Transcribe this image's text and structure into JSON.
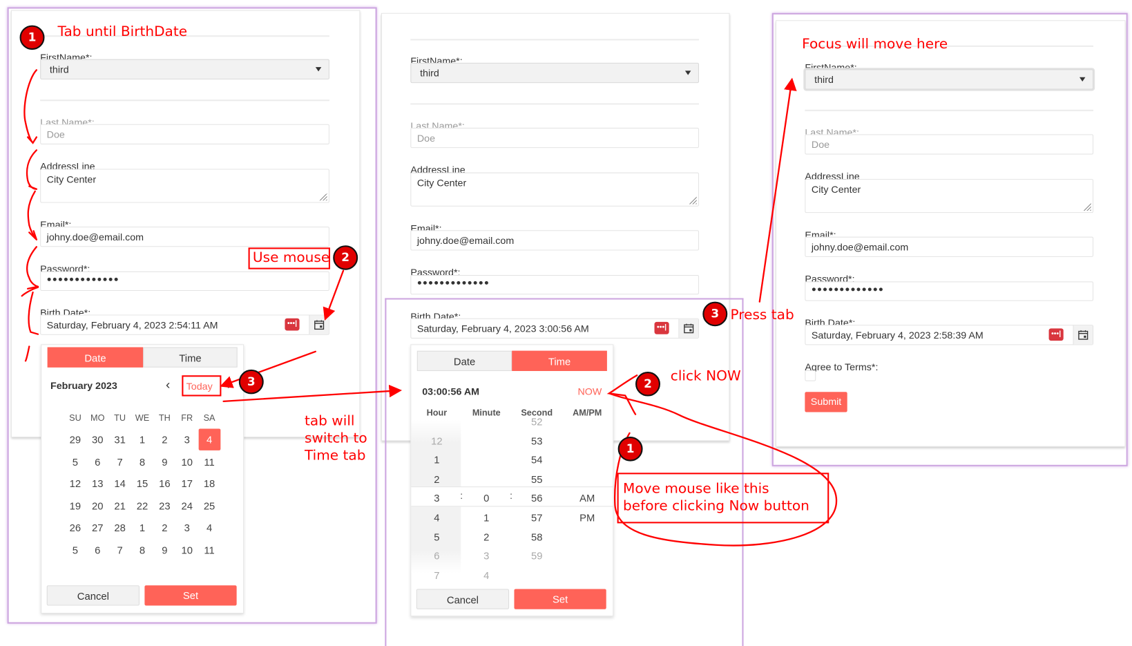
{
  "accent_color": "#ff6358",
  "annotation_color": "#ff0000",
  "panels": [
    {
      "form": {
        "first_name_label": "FirstName*:",
        "first_name_value": "third",
        "last_name_label": "Last Name*:",
        "last_name_value": "Doe",
        "address_label": "AddressLine",
        "address_value": "City Center",
        "email_label": "Email*:",
        "email_value": "johny.doe@email.com",
        "password_label": "Password*:",
        "password_value": "●●●●●●●●●●●●●",
        "birth_label": "Birth Date*:",
        "birth_value": "Saturday, February 4, 2023 2:54:11 AM",
        "dots_label": "•••|"
      }
    },
    {
      "form": {
        "first_name_label": "FirstName*:",
        "first_name_value": "third",
        "last_name_label": "Last Name*:",
        "last_name_value": "Doe",
        "address_label": "AddressLine",
        "address_value": "City Center",
        "email_label": "Email*:",
        "email_value": "johny.doe@email.com",
        "password_label": "Password*:",
        "password_value": "●●●●●●●●●●●●●",
        "birth_label": "Birth Date*:",
        "birth_value": "Saturday, February 4, 2023 3:00:56 AM",
        "dots_label": "•••|"
      }
    },
    {
      "form": {
        "first_name_label": "FirstName*:",
        "first_name_value": "third",
        "last_name_label": "Last Name*:",
        "last_name_value": "Doe",
        "address_label": "AddressLine",
        "address_value": "City Center",
        "email_label": "Email*:",
        "email_value": "johny.doe@email.com",
        "password_label": "Password*:",
        "password_value": "●●●●●●●●●●●●●",
        "birth_label": "Birth Date*:",
        "birth_value": "Saturday, February 4, 2023 2:58:39 AM",
        "dots_label": "•••|",
        "agree_label": "Agree to Terms*:",
        "agree_checked": false,
        "submit_label": "Submit"
      }
    }
  ],
  "date_popup": {
    "tabs": [
      "Date",
      "Time"
    ],
    "active_tab": "Date",
    "month_title": "February 2023",
    "prev_icon": "‹",
    "today_label": "Today",
    "next_icon": "›",
    "weekdays": [
      "SU",
      "MO",
      "TU",
      "WE",
      "TH",
      "FR",
      "SA"
    ],
    "weeks": [
      [
        "29",
        "30",
        "31",
        "1",
        "2",
        "3",
        "4"
      ],
      [
        "5",
        "6",
        "7",
        "8",
        "9",
        "10",
        "11"
      ],
      [
        "12",
        "13",
        "14",
        "15",
        "16",
        "17",
        "18"
      ],
      [
        "19",
        "20",
        "21",
        "22",
        "23",
        "24",
        "25"
      ],
      [
        "26",
        "27",
        "28",
        "1",
        "2",
        "3",
        "4"
      ],
      [
        "5",
        "6",
        "7",
        "8",
        "9",
        "10",
        "11"
      ]
    ],
    "selected_day": "4",
    "cancel_label": "Cancel",
    "set_label": "Set"
  },
  "time_popup": {
    "tabs": [
      "Date",
      "Time"
    ],
    "active_tab": "Time",
    "current_time": "03:00:56 AM",
    "now_label": "NOW",
    "columns": [
      {
        "header": "Hour",
        "values": [
          "12",
          "1",
          "2",
          "3",
          "4",
          "5",
          "6",
          "7"
        ],
        "selected": "3"
      },
      {
        "header": "Minute",
        "values": [
          "0",
          "1",
          "2",
          "3",
          "4"
        ],
        "selected": "0"
      },
      {
        "header": "Second",
        "values": [
          "52",
          "53",
          "54",
          "55",
          "56",
          "57",
          "58",
          "59"
        ],
        "selected": "56"
      },
      {
        "header": "AM/PM",
        "values": [
          "AM",
          "PM"
        ],
        "selected": "AM"
      }
    ],
    "separator": ":",
    "cancel_label": "Cancel",
    "set_label": "Set"
  },
  "annotations": {
    "step1_title": "Tab until BirthDate",
    "use_mouse": "Use mouse",
    "tab_switch": [
      "tab will",
      "switch to",
      "Time tab"
    ],
    "press_tab": "Press tab",
    "click_now": "click NOW",
    "move_mouse": [
      "Move mouse like this",
      "before clicking Now button"
    ],
    "focus_here": "Focus will move here",
    "badges": [
      "1",
      "2",
      "3"
    ]
  }
}
